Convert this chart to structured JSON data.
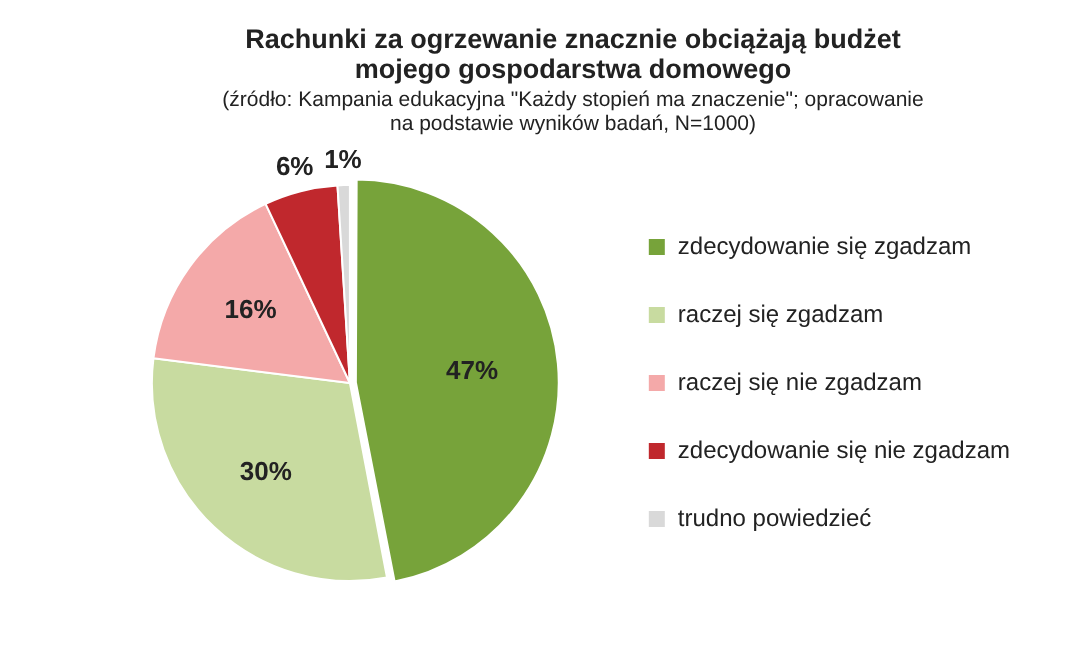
{
  "chart_data": {
    "type": "pie",
    "title": "Rachunki za ogrzewanie znacznie obciążają budżet mojego gospodarstwa domowego",
    "subtitle": "(źródło: Kampania edukacyjna \"Każdy stopień ma znaczenie\"; opracowanie na podstawie wyników badań, N=1000)",
    "categories": [
      "zdecydowanie się zgadzam",
      "raczej się zgadzam",
      "raczej się nie zgadzam",
      "zdecydowanie się nie zgadzam",
      "trudno powiedzieć"
    ],
    "values": [
      47,
      30,
      16,
      6,
      1
    ],
    "value_labels": [
      "47%",
      "30%",
      "16%",
      "6%",
      "1%"
    ],
    "colors": [
      "#77a33a",
      "#c8dba0",
      "#f4a9a9",
      "#c0282d",
      "#d9d9d9"
    ],
    "legend": "right"
  }
}
